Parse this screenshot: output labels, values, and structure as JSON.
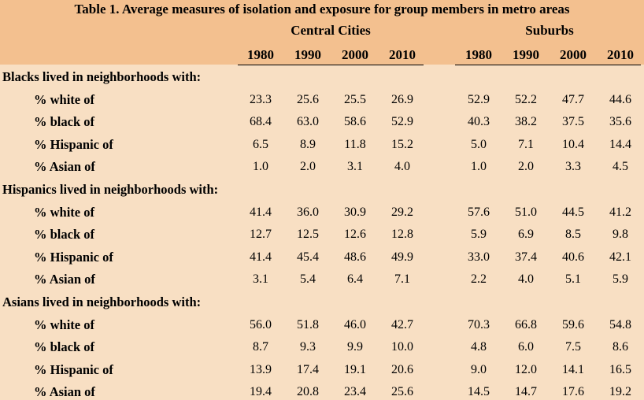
{
  "title": "Table 1.  Average measures of isolation and exposure for group members in metro areas",
  "groups": [
    "Central Cities",
    "Suburbs"
  ],
  "years": [
    "1980",
    "1990",
    "2000",
    "2010",
    "1980",
    "1990",
    "2000",
    "2010"
  ],
  "sections": [
    {
      "heading": "Blacks lived in neighborhoods with:",
      "rows": [
        {
          "label": "% white of",
          "values": [
            "23.3",
            "25.6",
            "25.5",
            "26.9",
            "52.9",
            "52.2",
            "47.7",
            "44.6"
          ]
        },
        {
          "label": "% black of",
          "values": [
            "68.4",
            "63.0",
            "58.6",
            "52.9",
            "40.3",
            "38.2",
            "37.5",
            "35.6"
          ]
        },
        {
          "label": "% Hispanic of",
          "values": [
            "6.5",
            "8.9",
            "11.8",
            "15.2",
            "5.0",
            "7.1",
            "10.4",
            "14.4"
          ]
        },
        {
          "label": "% Asian of",
          "values": [
            "1.0",
            "2.0",
            "3.1",
            "4.0",
            "1.0",
            "2.0",
            "3.3",
            "4.5"
          ]
        }
      ]
    },
    {
      "heading": "Hispanics lived in neighborhoods with:",
      "rows": [
        {
          "label": "% white of",
          "values": [
            "41.4",
            "36.0",
            "30.9",
            "29.2",
            "57.6",
            "51.0",
            "44.5",
            "41.2"
          ]
        },
        {
          "label": "% black of",
          "values": [
            "12.7",
            "12.5",
            "12.6",
            "12.8",
            "5.9",
            "6.9",
            "8.5",
            "9.8"
          ]
        },
        {
          "label": "% Hispanic of",
          "values": [
            "41.4",
            "45.4",
            "48.6",
            "49.9",
            "33.0",
            "37.4",
            "40.6",
            "42.1"
          ]
        },
        {
          "label": "% Asian of",
          "values": [
            "3.1",
            "5.4",
            "6.4",
            "7.1",
            "2.2",
            "4.0",
            "5.1",
            "5.9"
          ]
        }
      ]
    },
    {
      "heading": "Asians lived in neighborhoods with:",
      "rows": [
        {
          "label": "% white of",
          "values": [
            "56.0",
            "51.8",
            "46.0",
            "42.7",
            "70.3",
            "66.8",
            "59.6",
            "54.8"
          ]
        },
        {
          "label": "% black of",
          "values": [
            "8.7",
            "9.3",
            "9.9",
            "10.0",
            "4.8",
            "6.0",
            "7.5",
            "8.6"
          ]
        },
        {
          "label": "% Hispanic of",
          "values": [
            "13.9",
            "17.4",
            "19.1",
            "20.6",
            "9.0",
            "12.0",
            "14.1",
            "16.5"
          ]
        },
        {
          "label": "% Asian of",
          "values": [
            "19.4",
            "20.8",
            "23.4",
            "25.6",
            "14.5",
            "14.7",
            "17.6",
            "19.2"
          ]
        }
      ]
    }
  ]
}
